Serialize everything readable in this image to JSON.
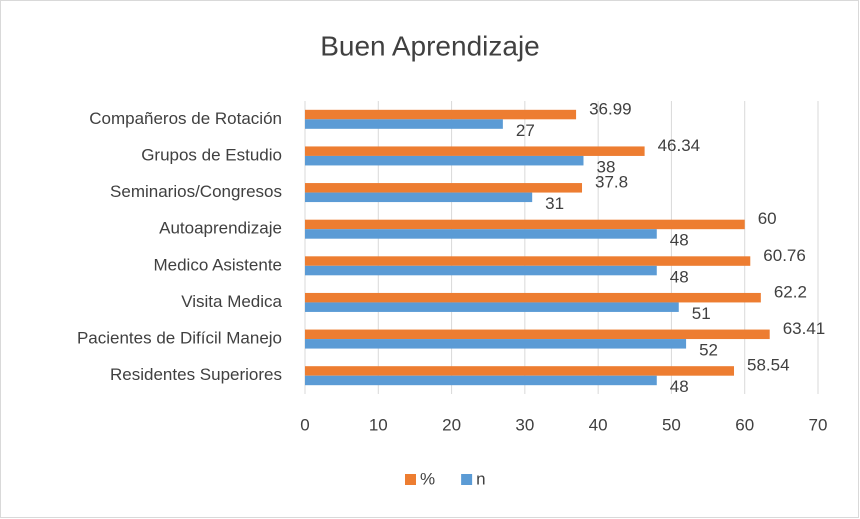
{
  "chart_data": {
    "type": "bar",
    "orientation": "horizontal",
    "title": "Buen Aprendizaje",
    "categories": [
      "Compañeros de Rotación",
      "Grupos de Estudio",
      "Seminarios/Congresos",
      "Autoaprendizaje",
      "Medico Asistente",
      "Visita Medica",
      "Pacientes de Difícil Manejo",
      "Residentes Superiores"
    ],
    "series": [
      {
        "name": "%",
        "color": "#ed7d31",
        "values": [
          36.99,
          46.34,
          37.8,
          60,
          60.76,
          62.2,
          63.41,
          58.54
        ]
      },
      {
        "name": "n",
        "color": "#5b9bd5",
        "values": [
          27,
          38,
          31,
          48,
          48,
          51,
          52,
          48
        ]
      }
    ],
    "xlim": [
      0,
      70
    ],
    "xticks": [
      0,
      10,
      20,
      30,
      40,
      50,
      60,
      70
    ],
    "grid": true,
    "legend": "bottom"
  }
}
